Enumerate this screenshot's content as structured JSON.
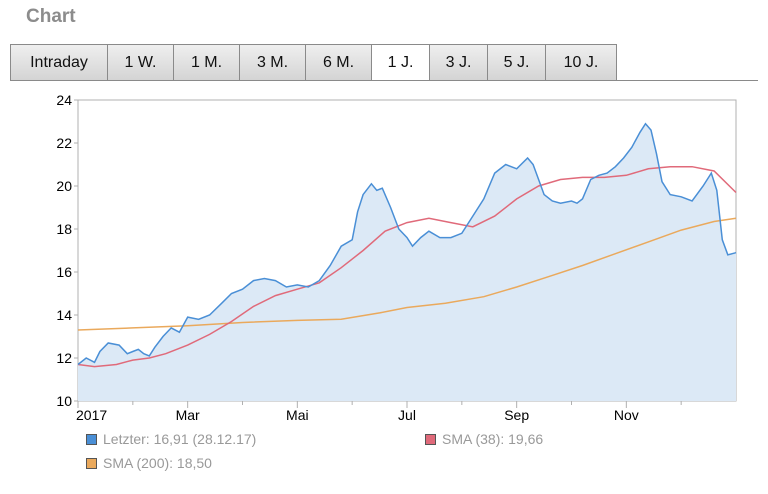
{
  "header": {
    "title": "Chart"
  },
  "tabs": [
    {
      "label": "Intraday",
      "active": false
    },
    {
      "label": "1 W.",
      "active": false
    },
    {
      "label": "1 M.",
      "active": false
    },
    {
      "label": "3 M.",
      "active": false
    },
    {
      "label": "6 M.",
      "active": false
    },
    {
      "label": "1 J.",
      "active": true
    },
    {
      "label": "3 J.",
      "active": false
    },
    {
      "label": "5 J.",
      "active": false
    },
    {
      "label": "10 J.",
      "active": false
    }
  ],
  "legend": {
    "last": "Letzter: 16,91 (28.12.17)",
    "sma38": "SMA (38): 19,66",
    "sma200": "SMA (200): 18,50"
  },
  "colors": {
    "price_line": "#4a8fd6",
    "price_fill": "#dce9f6",
    "sma38": "#e06a7a",
    "sma200": "#eaa95c",
    "grid": "#b0b0b0"
  },
  "chart_data": {
    "type": "area",
    "title": "",
    "xlabel": "",
    "ylabel": "",
    "ylim": [
      10,
      24
    ],
    "yticks": [
      10,
      12,
      14,
      16,
      18,
      20,
      22,
      24
    ],
    "xlim": [
      0,
      12
    ],
    "xticks": [
      {
        "label": "2017",
        "x": 0
      },
      {
        "label": "Mar",
        "x": 2
      },
      {
        "label": "Mai",
        "x": 4
      },
      {
        "label": "Jul",
        "x": 6
      },
      {
        "label": "Sep",
        "x": 8
      },
      {
        "label": "Nov",
        "x": 10
      }
    ],
    "minor_xticks": [
      1,
      3,
      5,
      7,
      9,
      11
    ],
    "grid": "none",
    "series": [
      {
        "name": "Letzter",
        "kind": "area",
        "points": [
          [
            0.0,
            11.7
          ],
          [
            0.15,
            12.0
          ],
          [
            0.3,
            11.8
          ],
          [
            0.4,
            12.3
          ],
          [
            0.55,
            12.7
          ],
          [
            0.75,
            12.6
          ],
          [
            0.9,
            12.2
          ],
          [
            1.0,
            12.3
          ],
          [
            1.1,
            12.4
          ],
          [
            1.2,
            12.2
          ],
          [
            1.3,
            12.1
          ],
          [
            1.4,
            12.5
          ],
          [
            1.55,
            13.0
          ],
          [
            1.7,
            13.4
          ],
          [
            1.85,
            13.2
          ],
          [
            2.0,
            13.9
          ],
          [
            2.2,
            13.8
          ],
          [
            2.4,
            14.0
          ],
          [
            2.6,
            14.5
          ],
          [
            2.8,
            15.0
          ],
          [
            3.0,
            15.2
          ],
          [
            3.2,
            15.6
          ],
          [
            3.4,
            15.7
          ],
          [
            3.6,
            15.6
          ],
          [
            3.8,
            15.3
          ],
          [
            4.0,
            15.4
          ],
          [
            4.2,
            15.3
          ],
          [
            4.4,
            15.6
          ],
          [
            4.6,
            16.3
          ],
          [
            4.8,
            17.2
          ],
          [
            5.0,
            17.5
          ],
          [
            5.1,
            18.8
          ],
          [
            5.2,
            19.6
          ],
          [
            5.35,
            20.1
          ],
          [
            5.45,
            19.8
          ],
          [
            5.55,
            19.9
          ],
          [
            5.7,
            19.0
          ],
          [
            5.85,
            18.0
          ],
          [
            6.0,
            17.6
          ],
          [
            6.1,
            17.2
          ],
          [
            6.25,
            17.6
          ],
          [
            6.4,
            17.9
          ],
          [
            6.6,
            17.6
          ],
          [
            6.8,
            17.6
          ],
          [
            7.0,
            17.8
          ],
          [
            7.2,
            18.6
          ],
          [
            7.4,
            19.4
          ],
          [
            7.6,
            20.6
          ],
          [
            7.8,
            21.0
          ],
          [
            8.0,
            20.8
          ],
          [
            8.2,
            21.3
          ],
          [
            8.3,
            21.0
          ],
          [
            8.4,
            20.3
          ],
          [
            8.5,
            19.6
          ],
          [
            8.65,
            19.3
          ],
          [
            8.8,
            19.2
          ],
          [
            9.0,
            19.3
          ],
          [
            9.1,
            19.2
          ],
          [
            9.2,
            19.4
          ],
          [
            9.35,
            20.3
          ],
          [
            9.5,
            20.5
          ],
          [
            9.65,
            20.6
          ],
          [
            9.8,
            20.9
          ],
          [
            9.95,
            21.3
          ],
          [
            10.1,
            21.8
          ],
          [
            10.25,
            22.5
          ],
          [
            10.35,
            22.9
          ],
          [
            10.45,
            22.6
          ],
          [
            10.55,
            21.5
          ],
          [
            10.65,
            20.2
          ],
          [
            10.8,
            19.6
          ],
          [
            11.0,
            19.5
          ],
          [
            11.2,
            19.3
          ],
          [
            11.4,
            20.0
          ],
          [
            11.55,
            20.6
          ],
          [
            11.65,
            19.8
          ],
          [
            11.75,
            17.5
          ],
          [
            11.85,
            16.8
          ],
          [
            12.0,
            16.9
          ]
        ]
      },
      {
        "name": "SMA (38)",
        "kind": "line",
        "points": [
          [
            0.0,
            11.7
          ],
          [
            0.3,
            11.6
          ],
          [
            0.7,
            11.7
          ],
          [
            1.0,
            11.9
          ],
          [
            1.3,
            12.0
          ],
          [
            1.6,
            12.2
          ],
          [
            2.0,
            12.6
          ],
          [
            2.4,
            13.1
          ],
          [
            2.8,
            13.7
          ],
          [
            3.2,
            14.4
          ],
          [
            3.6,
            14.9
          ],
          [
            4.0,
            15.2
          ],
          [
            4.4,
            15.5
          ],
          [
            4.8,
            16.2
          ],
          [
            5.2,
            17.0
          ],
          [
            5.6,
            17.9
          ],
          [
            6.0,
            18.3
          ],
          [
            6.4,
            18.5
          ],
          [
            6.8,
            18.3
          ],
          [
            7.2,
            18.1
          ],
          [
            7.6,
            18.6
          ],
          [
            8.0,
            19.4
          ],
          [
            8.4,
            20.0
          ],
          [
            8.8,
            20.3
          ],
          [
            9.2,
            20.4
          ],
          [
            9.6,
            20.4
          ],
          [
            10.0,
            20.5
          ],
          [
            10.4,
            20.8
          ],
          [
            10.8,
            20.9
          ],
          [
            11.2,
            20.9
          ],
          [
            11.6,
            20.7
          ],
          [
            12.0,
            19.7
          ]
        ]
      },
      {
        "name": "SMA (200)",
        "kind": "line",
        "points": [
          [
            0.0,
            13.3
          ],
          [
            1.0,
            13.4
          ],
          [
            2.0,
            13.5
          ],
          [
            3.0,
            13.65
          ],
          [
            4.0,
            13.75
          ],
          [
            4.8,
            13.8
          ],
          [
            5.5,
            14.1
          ],
          [
            6.0,
            14.35
          ],
          [
            6.7,
            14.55
          ],
          [
            7.4,
            14.85
          ],
          [
            8.0,
            15.3
          ],
          [
            8.6,
            15.8
          ],
          [
            9.2,
            16.3
          ],
          [
            9.8,
            16.85
          ],
          [
            10.4,
            17.4
          ],
          [
            11.0,
            17.95
          ],
          [
            11.6,
            18.35
          ],
          [
            12.0,
            18.5
          ]
        ]
      }
    ]
  }
}
